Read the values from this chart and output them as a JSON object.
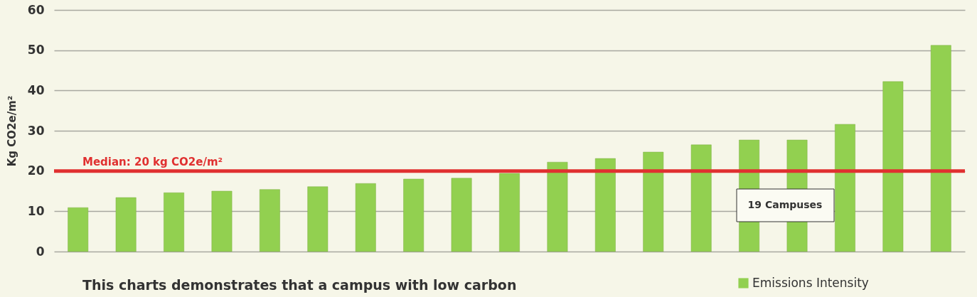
{
  "chart_data": {
    "type": "bar",
    "ylabel": "Kg CO2e/m²",
    "categories": [
      null,
      null,
      null,
      null,
      null,
      null,
      null,
      null,
      null,
      null,
      null,
      null,
      null,
      null,
      null,
      null,
      null,
      null,
      null
    ],
    "series": [
      {
        "name": "Emissions Intensity",
        "color": "#92d050",
        "values": [
          10.9,
          13.4,
          14.6,
          15.0,
          15.4,
          16.1,
          16.9,
          18.0,
          18.2,
          19.4,
          22.2,
          23.1,
          24.7,
          26.5,
          27.7,
          27.7,
          31.6,
          42.2,
          51.2
        ]
      }
    ],
    "ylim": [
      0,
      60
    ],
    "yticks": [
      0,
      10,
      20,
      30,
      40,
      50,
      60
    ],
    "grid": "y",
    "tick_labels": "y",
    "legend": "bottom right",
    "ref_lines": [
      {
        "axis": "y",
        "value": 20,
        "label": "Median: 20 kg CO2e/m²",
        "color": "#e03030"
      }
    ],
    "annotations": [
      "19 Campuses",
      "This charts demonstrates that a campus with low carbon"
    ]
  }
}
